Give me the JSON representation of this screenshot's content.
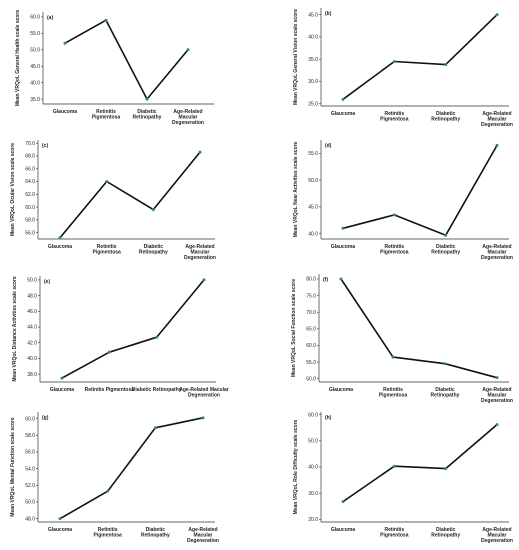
{
  "chart_data": [
    {
      "type": "line",
      "panel_label": "(a)",
      "ylabel": "Mean VRQoL General Health scale score",
      "categories": [
        [
          "Glaucoma"
        ],
        [
          "Retinitis",
          "Pigmentosa"
        ],
        [
          "Diabetic",
          "Retinopathy"
        ],
        [
          "Age-Related",
          "Macular",
          "Degeneration"
        ]
      ],
      "values": [
        52.0,
        59.0,
        35.0,
        50.0
      ],
      "yticks": [
        "35.0",
        "40.0",
        "45.0",
        "50.0",
        "55.0",
        "60.0"
      ],
      "ylim": [
        33.5,
        61.5
      ]
    },
    {
      "type": "line",
      "panel_label": "(b)",
      "ylabel": "Mean VRQoL General Vision scale score",
      "categories": [
        [
          "Glaucoma"
        ],
        [
          "Retinitis",
          "Pigmentosa"
        ],
        [
          "Diabetic",
          "Retinopathy"
        ],
        [
          "Age-Related",
          "Macular",
          "Degeneration"
        ]
      ],
      "values": [
        26.0,
        34.5,
        33.8,
        45.0
      ],
      "yticks": [
        "25.0",
        "30.0",
        "35.0",
        "40.0",
        "45.0"
      ],
      "ylim": [
        24.5,
        46.5
      ]
    },
    {
      "type": "line",
      "panel_label": "(c)",
      "ylabel": "Mean VRQoL Ocular Vision scale score",
      "categories": [
        [
          "Glaucoma"
        ],
        [
          "Retinitis",
          "Pigmentosa"
        ],
        [
          "Diabetic",
          "Retinopathy"
        ],
        [
          "Age-Related",
          "Macular",
          "Degeneration"
        ]
      ],
      "values": [
        55.2,
        64.0,
        59.6,
        68.6
      ],
      "yticks": [
        "56.0",
        "58.0",
        "60.0",
        "62.0",
        "64.0",
        "66.0",
        "68.0",
        "70.0"
      ],
      "ylim": [
        55.0,
        70.5
      ]
    },
    {
      "type": "line",
      "panel_label": "(d)",
      "ylabel": "Mean VRQoL Near Activities scale score",
      "categories": [
        [
          "Glaucoma"
        ],
        [
          "Retinitis",
          "Pigmentosa"
        ],
        [
          "Diabetic",
          "Retinopathy"
        ],
        [
          "Age-Related",
          "Macular",
          "Degeneration"
        ]
      ],
      "values": [
        41.0,
        43.5,
        39.7,
        56.5
      ],
      "yticks": [
        "40.0",
        "45.0",
        "50.0",
        "55.0"
      ],
      "ylim": [
        39.0,
        57.5
      ]
    },
    {
      "type": "line",
      "panel_label": "(e)",
      "ylabel": "Mean VRQoL Distance Activities scale score",
      "categories": [
        [
          "Glaucoma"
        ],
        [
          "Retinitis Pigmentosa"
        ],
        [
          "Diabetic Retinopathy"
        ],
        [
          "Age-Related Macular",
          "Degeneration"
        ]
      ],
      "values": [
        37.5,
        40.8,
        42.7,
        50.0
      ],
      "yticks": [
        "38.0",
        "40.0",
        "42.0",
        "44.0",
        "46.0",
        "48.0",
        "50.0"
      ],
      "ylim": [
        37.0,
        50.5
      ]
    },
    {
      "type": "line",
      "panel_label": "(f)",
      "ylabel": "Mean VRQoL Social Function scale score",
      "categories": [
        [
          "Glaucoma"
        ],
        [
          "Retinitis",
          "Pigmentosa"
        ],
        [
          "Diabetic",
          "Retinopathy"
        ],
        [
          "Age-Related",
          "Macular",
          "Degeneration"
        ]
      ],
      "values": [
        80.0,
        56.5,
        54.5,
        50.3
      ],
      "yticks": [
        "50.0",
        "55.0",
        "60.0",
        "65.0",
        "70.0",
        "75.0",
        "80.0"
      ],
      "ylim": [
        49.0,
        81.5
      ]
    },
    {
      "type": "line",
      "panel_label": "(g)",
      "ylabel": "Mean VRQoL Mental Function scale score",
      "categories": [
        [
          "Glaucoma"
        ],
        [
          "Retinitis",
          "Pigmentosa"
        ],
        [
          "Diabetic",
          "Retinopathy"
        ],
        [
          "Age-Related",
          "Macular",
          "Degeneration"
        ]
      ],
      "values": [
        48.0,
        51.3,
        58.9,
        60.1
      ],
      "yticks": [
        "48.0",
        "50.0",
        "52.0",
        "54.0",
        "56.0",
        "58.0",
        "60.0"
      ],
      "ylim": [
        47.6,
        60.8
      ]
    },
    {
      "type": "line",
      "panel_label": "(h)",
      "ylabel": "Mean VRQoL Role Difficulty scale score",
      "categories": [
        [
          "Glaucoma"
        ],
        [
          "Retinitis",
          "Pigmentosa"
        ],
        [
          "Diabetic",
          "Retinopathy"
        ],
        [
          "Age-Related",
          "Macular",
          "Degeneration"
        ]
      ],
      "values": [
        26.8,
        40.3,
        39.4,
        56.2
      ],
      "yticks": [
        "20.0",
        "30.0",
        "40.0",
        "50.0",
        "60.0"
      ],
      "ylim": [
        19.0,
        61.0
      ]
    }
  ]
}
